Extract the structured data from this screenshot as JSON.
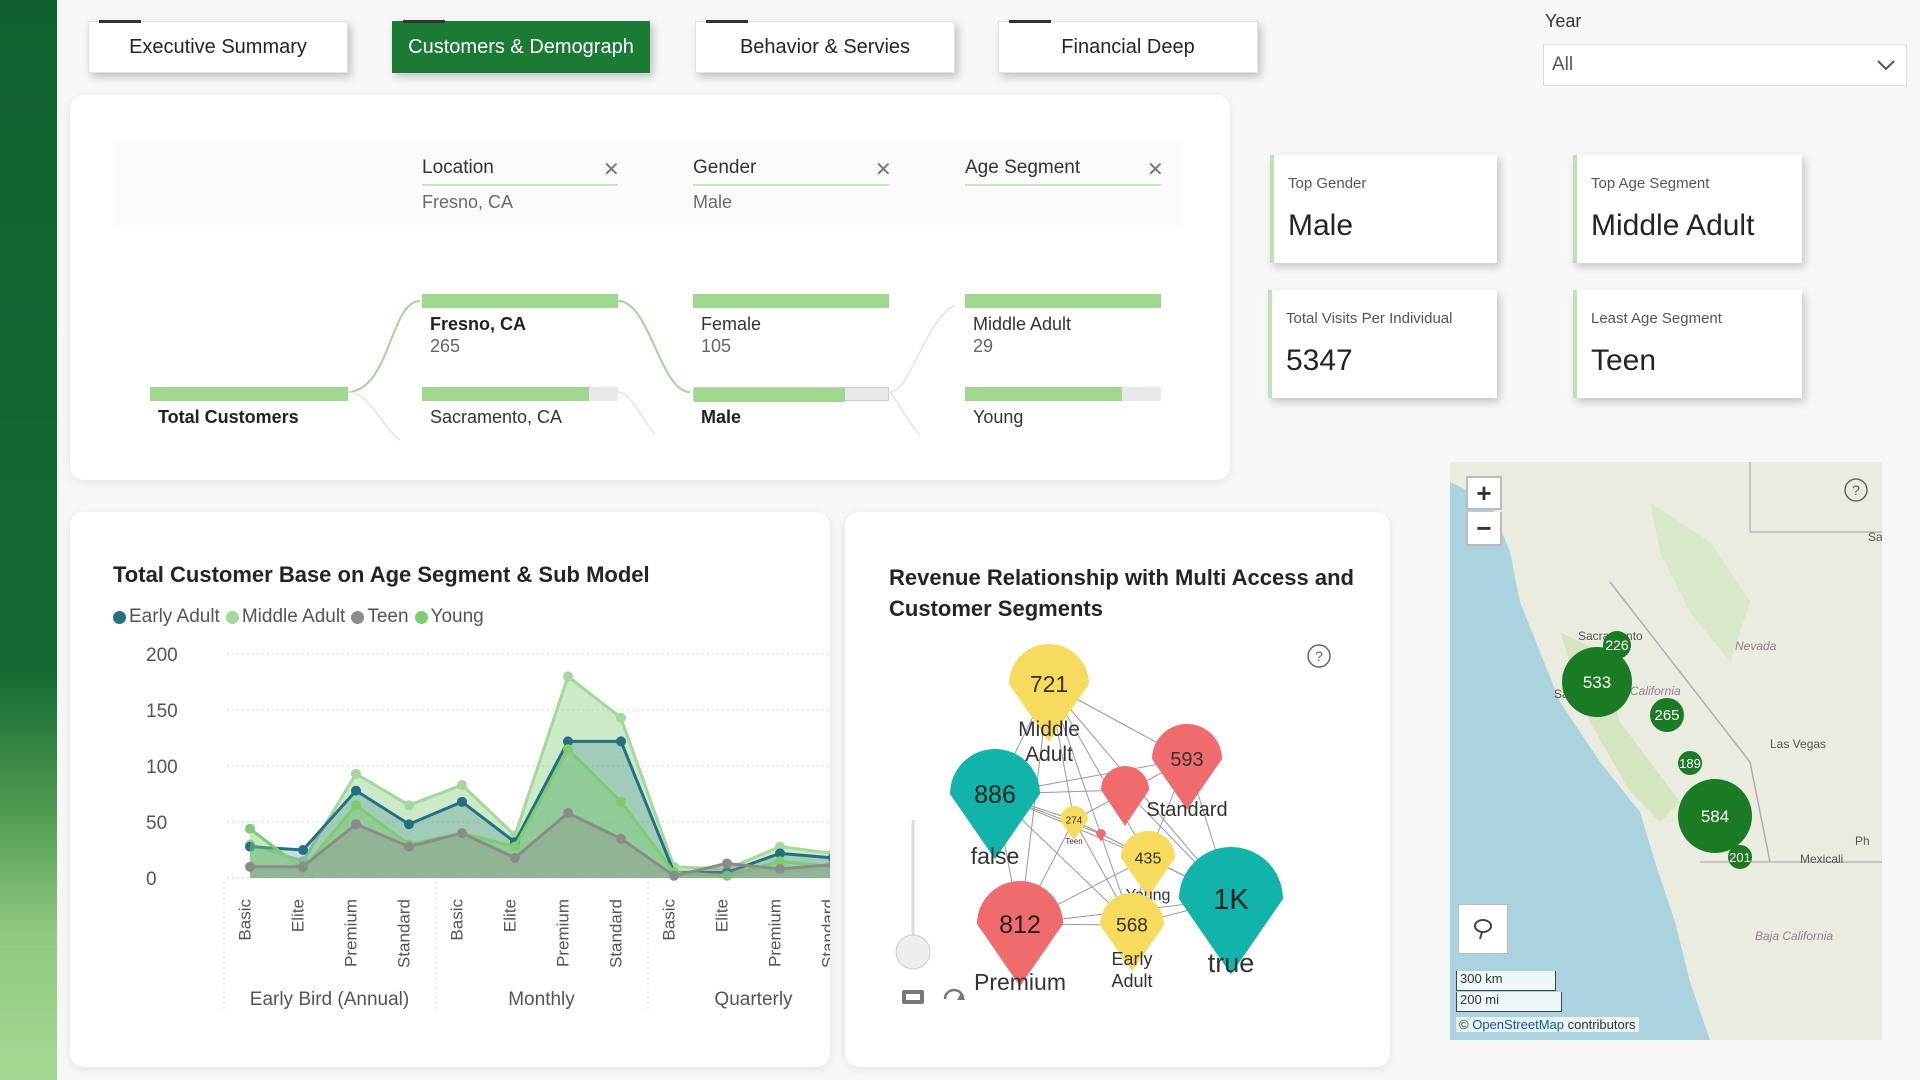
{
  "tabs": [
    {
      "label": "Executive Summary"
    },
    {
      "label": "Customers & Demograph"
    },
    {
      "label": "Behavior & Servies"
    },
    {
      "label": "Financial Deep"
    }
  ],
  "year_filter": {
    "label": "Year",
    "value": "All"
  },
  "slicers": {
    "location": {
      "title": "Location",
      "value": "Fresno, CA"
    },
    "gender": {
      "title": "Gender",
      "value": "Male"
    },
    "age_segment": {
      "title": "Age Segment",
      "value": ""
    }
  },
  "decomp": {
    "root": {
      "label": "Total Customers"
    },
    "level1": [
      {
        "label": "Fresno, CA",
        "count": "265",
        "fraction": 1.0
      },
      {
        "label": "Sacramento, CA",
        "fraction": 0.85
      }
    ],
    "level2": [
      {
        "label": "Female",
        "count": "105",
        "fraction": 1.0
      },
      {
        "label": "Male",
        "fraction": 0.78
      }
    ],
    "level3": [
      {
        "label": "Middle Adult",
        "count": "29",
        "fraction": 1.0
      },
      {
        "label": "Young",
        "fraction": 0.8
      }
    ]
  },
  "cards": [
    {
      "title": "Top Gender",
      "value": "Male"
    },
    {
      "title": "Top Age Segment",
      "value": "Middle Adult"
    },
    {
      "title": "Total Visits Per Individual",
      "value": "5347"
    },
    {
      "title": "Least Age Segment",
      "value": "Teen"
    }
  ],
  "area_chart": {
    "title": "Total Customer Base on Age Segment & Sub Model",
    "legend": [
      {
        "name": "Early Adult",
        "color": "#236f86"
      },
      {
        "name": "Middle Adult",
        "color": "#a3d99a"
      },
      {
        "name": "Teen",
        "color": "#8b8b8b"
      },
      {
        "name": "Young",
        "color": "#7ccd70"
      }
    ],
    "groups": [
      "Early Bird (Annual)",
      "Monthly",
      "Quarterly"
    ]
  },
  "chart_data": {
    "type": "area",
    "title": "Total Customer Base on Age Segment & Sub Model",
    "categories": [
      "Basic",
      "Elite",
      "Premium",
      "Standard",
      "Basic",
      "Elite",
      "Premium",
      "Standard",
      "Basic",
      "Elite",
      "Premium",
      "Standard"
    ],
    "groups": [
      "Early Bird (Annual)",
      "Monthly",
      "Quarterly"
    ],
    "yticks": [
      "0",
      "50",
      "100",
      "150",
      "200"
    ],
    "ylim": [
      0,
      200
    ],
    "series": [
      {
        "name": "Middle Adult",
        "values": [
          30,
          15,
          93,
          65,
          83,
          38,
          180,
          143,
          10,
          8,
          28,
          22
        ]
      },
      {
        "name": "Early Adult",
        "values": [
          28,
          25,
          78,
          48,
          68,
          32,
          122,
          122,
          5,
          5,
          22,
          18
        ]
      },
      {
        "name": "Young",
        "values": [
          44,
          8,
          65,
          30,
          40,
          28,
          115,
          68,
          5,
          2,
          15,
          10
        ]
      },
      {
        "name": "Teen",
        "values": [
          10,
          10,
          48,
          28,
          40,
          18,
          58,
          35,
          2,
          13,
          8,
          12
        ]
      }
    ]
  },
  "network": {
    "title": "Revenue Relationship with Multi Access and Customer Segments",
    "bubbles": [
      {
        "value": "721",
        "label": "Middle Adult"
      },
      {
        "value": "593",
        "label": "Standard"
      },
      {
        "value": "886",
        "label": "false"
      },
      {
        "value": "274",
        "label": "Teen"
      },
      {
        "value": "435",
        "label": "Young"
      },
      {
        "value": "1K",
        "label": "true"
      },
      {
        "value": "812",
        "label": "Premium"
      },
      {
        "value": "568",
        "label": "Early Adult"
      }
    ]
  },
  "map": {
    "cities": [
      "Sacramento",
      "Nevada",
      "California",
      "Las Vegas",
      "Mexicali",
      "Baja California",
      "Sa",
      "Ph",
      "Sa"
    ],
    "clusters": [
      "533",
      "226",
      "265",
      "189",
      "584",
      "201"
    ],
    "scale_km": "300 km",
    "scale_mi": "200 mi",
    "attribution_link": "OpenStreetMap",
    "attribution_rest": "contributors",
    "attribution_symbol": "©"
  }
}
